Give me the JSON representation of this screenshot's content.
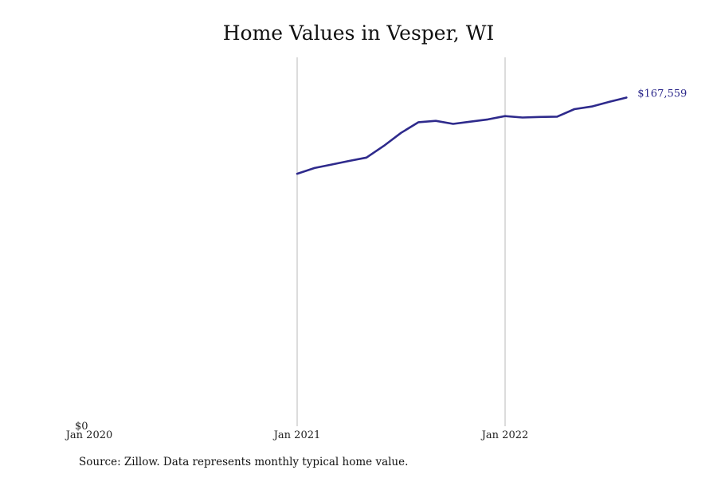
{
  "chart_data": {
    "type": "line",
    "title": "Home Values in Vesper, WI",
    "xlabel": "",
    "ylabel": "",
    "x_ticks": [
      "Jan 2020",
      "Jan 2021",
      "Jan 2022"
    ],
    "y_ticks": [
      "$0"
    ],
    "ylim": [
      0,
      167559
    ],
    "grid": "vertical lines at Jan 2021 and Jan 2022",
    "end_label": "$167,559",
    "series": [
      {
        "color": "#2e2a8c",
        "x": [
          "2021-01",
          "2021-02",
          "2021-03",
          "2021-04",
          "2021-05",
          "2021-06",
          "2021-07",
          "2021-08",
          "2021-09",
          "2021-10",
          "2021-11",
          "2021-12",
          "2022-01",
          "2022-02",
          "2022-03",
          "2022-04",
          "2022-05",
          "2022-06",
          "2022-07",
          "2022-08"
        ],
        "values": [
          135500,
          138600,
          140500,
          142400,
          144200,
          150500,
          157500,
          163200,
          163900,
          162300,
          163500,
          164700,
          166500,
          165700,
          166000,
          166200,
          170200,
          171600,
          174100,
          167559
        ]
      }
    ]
  },
  "source": "Source: Zillow. Data represents monthly typical home value."
}
